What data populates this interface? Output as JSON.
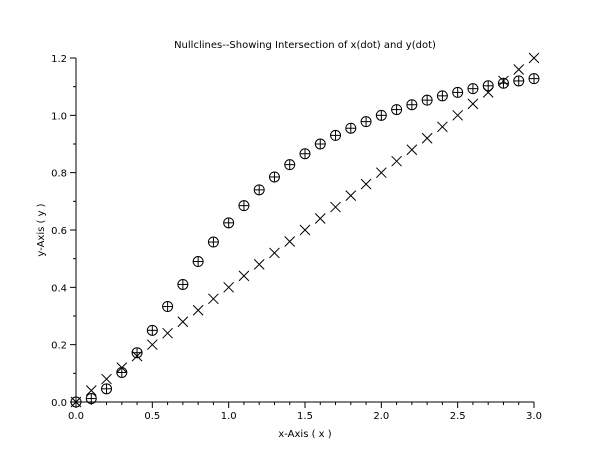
{
  "chart_data": {
    "type": "scatter",
    "title": "Nullclines--Showing Intersection of x(dot) and y(dot)",
    "xlabel": "x-Axis ( x )",
    "ylabel": "y-Axis ( y )",
    "xlim": [
      0,
      3.0
    ],
    "ylim": [
      0,
      1.2
    ],
    "xticks": [
      "0.0",
      "0.5",
      "1.0",
      "1.5",
      "2.0",
      "2.5",
      "3.0"
    ],
    "yticks": [
      "0.0",
      "0.2",
      "0.4",
      "0.6",
      "0.8",
      "1.0",
      "1.2"
    ],
    "grid": false,
    "legend": "none",
    "series": [
      {
        "marker": "circle-plus",
        "x": [
          0.0,
          0.1,
          0.2,
          0.3,
          0.4,
          0.5,
          0.6,
          0.7,
          0.8,
          0.9,
          1.0,
          1.1,
          1.2,
          1.3,
          1.4,
          1.5,
          1.6,
          1.7,
          1.8,
          1.9,
          2.0,
          2.1,
          2.2,
          2.3,
          2.4,
          2.5,
          2.6,
          2.7,
          2.8,
          2.9,
          3.0
        ],
        "y": [
          0.0,
          0.012,
          0.046,
          0.103,
          0.172,
          0.25,
          0.333,
          0.41,
          0.49,
          0.558,
          0.625,
          0.685,
          0.74,
          0.785,
          0.828,
          0.866,
          0.9,
          0.93,
          0.955,
          0.978,
          1.0,
          1.02,
          1.037,
          1.053,
          1.068,
          1.08,
          1.093,
          1.103,
          1.112,
          1.12,
          1.128
        ]
      },
      {
        "marker": "x",
        "x": [
          0.0,
          0.1,
          0.2,
          0.3,
          0.4,
          0.5,
          0.6,
          0.7,
          0.8,
          0.9,
          1.0,
          1.1,
          1.2,
          1.3,
          1.4,
          1.5,
          1.6,
          1.7,
          1.8,
          1.9,
          2.0,
          2.1,
          2.2,
          2.3,
          2.4,
          2.5,
          2.6,
          2.7,
          2.8,
          2.9,
          3.0
        ],
        "y": [
          0.0,
          0.04,
          0.08,
          0.12,
          0.16,
          0.2,
          0.24,
          0.28,
          0.32,
          0.36,
          0.4,
          0.44,
          0.48,
          0.52,
          0.56,
          0.6,
          0.64,
          0.68,
          0.72,
          0.76,
          0.8,
          0.84,
          0.88,
          0.92,
          0.96,
          1.0,
          1.04,
          1.08,
          1.12,
          1.16,
          1.2
        ]
      }
    ]
  }
}
